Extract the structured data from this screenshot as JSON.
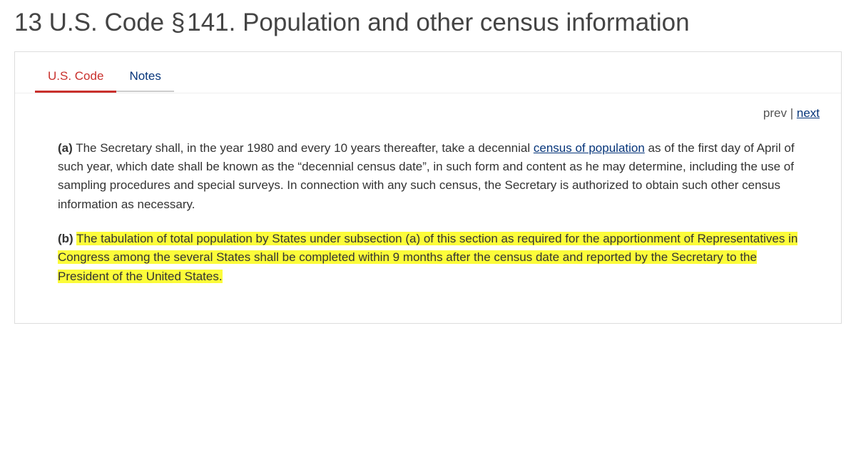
{
  "title": "13 U.S. Code § 141. Population and other census information",
  "tabs": {
    "code": "U.S. Code",
    "notes": "Notes"
  },
  "nav": {
    "prev": "prev",
    "sep": " | ",
    "next": "next"
  },
  "section_a": {
    "label": "(a)",
    "t1": " The Secretary shall, in the year 1980 and every 10 years thereafter, take a decennial ",
    "link": "census of population",
    "t2": " as of the first day of April of such year, which date shall be known as the “decennial census date”, in such form and content as he may determine, including the use of sampling procedures and special surveys. In connection with any such census, the Secretary is authorized to obtain such other census information as necessary."
  },
  "section_b": {
    "label": "(b)",
    "text": "The tabulation of total population by States under subsection (a) of this section as required for the apportionment of Representatives in Congress among the several States shall be completed within 9 months after the census date and reported by the Secretary to the President of the United States."
  },
  "colors": {
    "highlight": "#fcfc3a",
    "active_tab": "#c9302c",
    "link": "#06357a"
  }
}
